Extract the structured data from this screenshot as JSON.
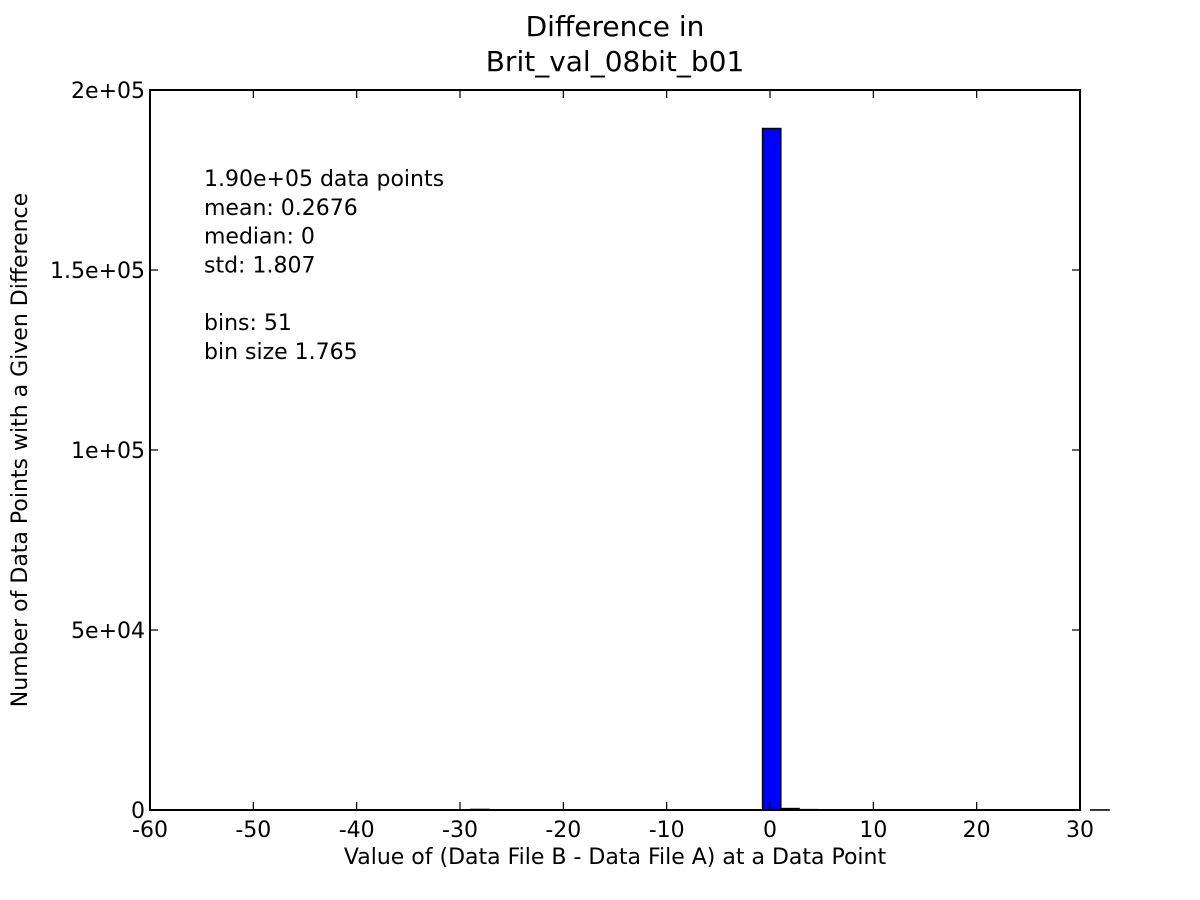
{
  "chart_data": {
    "type": "bar",
    "title": [
      "Difference in",
      "Brit_val_08bit_b01"
    ],
    "xlabel": "Value of (Data File B - Data File A) at a Data Point",
    "ylabel": "Number of Data Points with a Given Difference",
    "xlim": [
      -60,
      30
    ],
    "ylim": [
      0,
      200000
    ],
    "x_ticks": [
      {
        "value": -60,
        "label": "-60"
      },
      {
        "value": -50,
        "label": "-50"
      },
      {
        "value": -40,
        "label": "-40"
      },
      {
        "value": -30,
        "label": "-30"
      },
      {
        "value": -20,
        "label": "-20"
      },
      {
        "value": -10,
        "label": "-10"
      },
      {
        "value": 0,
        "label": "0"
      },
      {
        "value": 10,
        "label": "10"
      },
      {
        "value": 20,
        "label": "20"
      },
      {
        "value": 30,
        "label": "30"
      }
    ],
    "y_ticks": [
      {
        "value": 0,
        "label": "0"
      },
      {
        "value": 50000,
        "label": "5e+04"
      },
      {
        "value": 100000,
        "label": "1e+05"
      },
      {
        "value": 150000,
        "label": "1.5e+05"
      },
      {
        "value": 200000,
        "label": "2e+05"
      }
    ],
    "grid": false,
    "bar_color": "#0000ff",
    "bins": {
      "start": -57.2,
      "width": 1.765,
      "count": 51,
      "counts": [
        50,
        0,
        0,
        0,
        0,
        0,
        0,
        0,
        0,
        0,
        0,
        0,
        0,
        0,
        0,
        0,
        150,
        0,
        0,
        0,
        0,
        0,
        0,
        0,
        0,
        0,
        0,
        0,
        0,
        0,
        0,
        32,
        189300,
        400,
        100,
        50,
        0,
        0,
        0,
        0,
        0,
        0,
        0,
        0,
        0,
        0,
        0,
        0,
        0,
        0,
        20
      ]
    },
    "annotation": [
      "1.90e+05 data points",
      "mean: 0.2676",
      "median: 0",
      "std: 1.807",
      "",
      "bins: 51",
      "bin size 1.765"
    ]
  }
}
